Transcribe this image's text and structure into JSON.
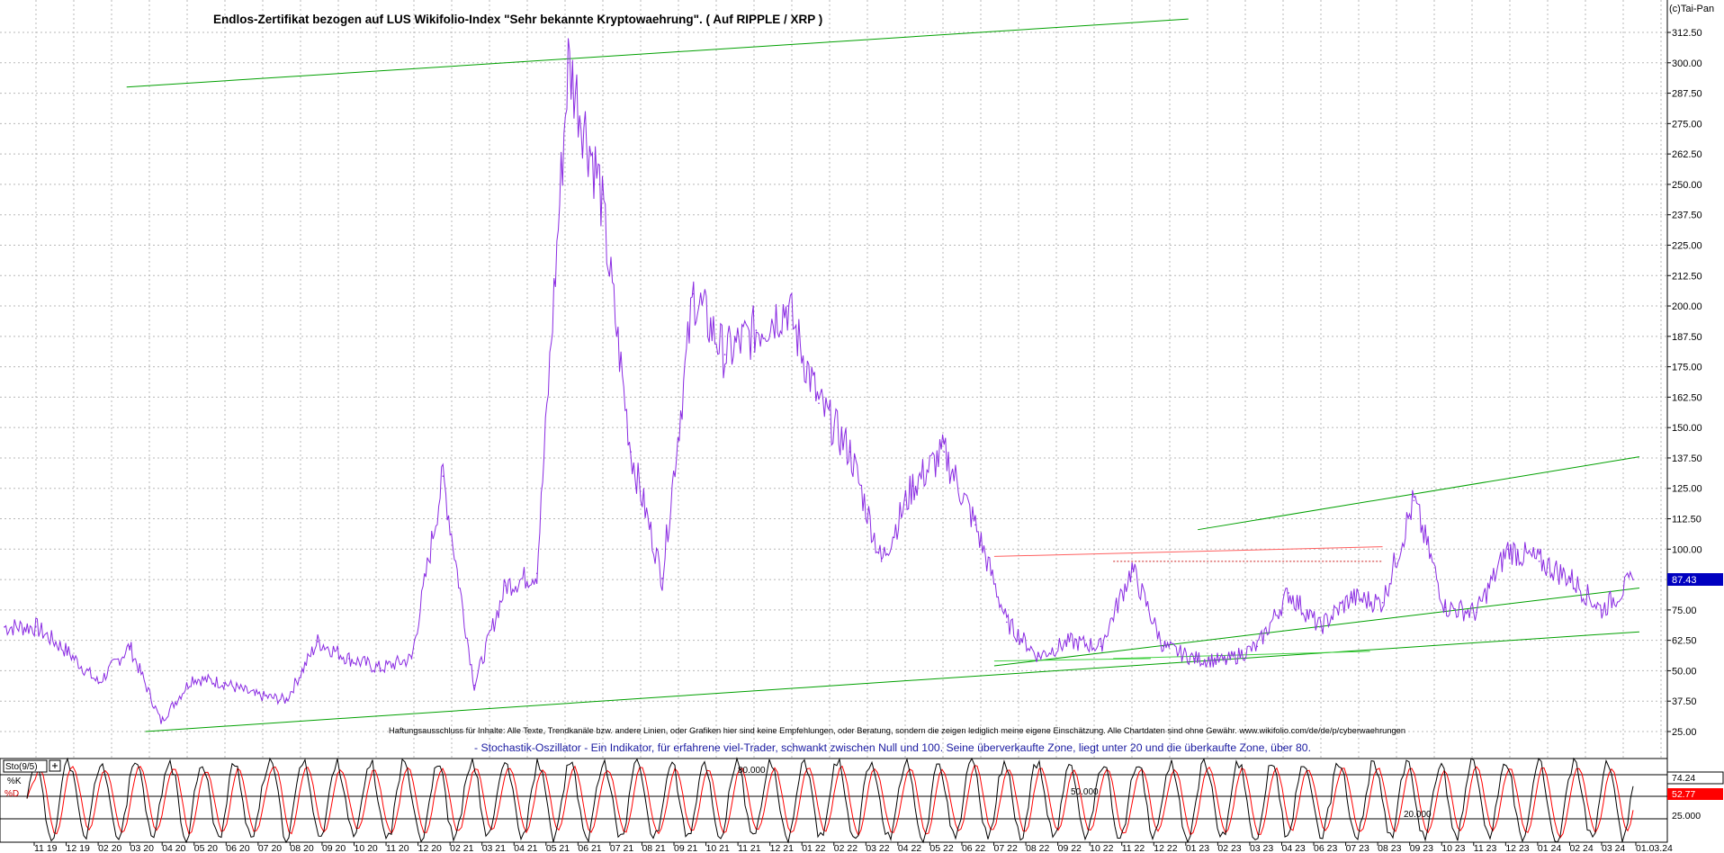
{
  "chart_data": [
    {
      "type": "line",
      "title": "Endlos-Zertifikat bezogen auf LUS Wikifolio-Index \"Sehr bekannte Kryptowaehrung\". ( Auf RIPPLE / XRP )",
      "copyright": "(c)Tai-Pan",
      "ylim": [
        20,
        317
      ],
      "yticks": [
        "312.50",
        "300.00",
        "287.50",
        "275.00",
        "262.50",
        "250.00",
        "237.50",
        "225.00",
        "212.50",
        "200.00",
        "187.50",
        "175.00",
        "162.50",
        "150.00",
        "137.50",
        "125.00",
        "112.50",
        "100.00",
        "87.50",
        "75.00",
        "62.50",
        "50.00",
        "37.50",
        "25.00"
      ],
      "last_value_label": "87.43",
      "last_value": 87.43,
      "series_color": "#8a2be2",
      "series": [
        {
          "x": [
            "11.2019",
            "12.2019",
            "01.2020",
            "02.2020",
            "03.2020",
            "04.2020",
            "05.2020",
            "06.2020",
            "07.2020",
            "08.2020",
            "09.2020",
            "10.2020",
            "11.2020",
            "12.2020",
            "01.2021",
            "02.2021",
            "03.2021",
            "04.2021",
            "05.2021",
            "06.2021",
            "07.2021",
            "08.2021",
            "09.2021",
            "10.2021",
            "11.2021",
            "12.2021",
            "01.2022",
            "02.2022",
            "03.2022",
            "04.2022",
            "05.2022",
            "06.2022",
            "07.2022",
            "08.2022",
            "09.2022",
            "10.2022",
            "11.2022",
            "12.2022",
            "01.2023",
            "02.2023",
            "03.2023",
            "04.2023",
            "05.2023",
            "06.2023",
            "07.2023",
            "08.2023",
            "09.2023",
            "10.2023",
            "11.2023",
            "12.2023",
            "01.2024",
            "02.2024",
            "03.2024"
          ],
          "values": [
            68,
            68,
            58,
            45,
            60,
            29,
            47,
            45,
            40,
            38,
            62,
            55,
            51,
            55,
            130,
            44,
            85,
            90,
            300,
            250,
            140,
            88,
            205,
            180,
            190,
            200,
            160,
            140,
            95,
            126,
            140,
            110,
            70,
            56,
            62,
            60,
            92,
            60,
            55,
            54,
            60,
            82,
            68,
            80,
            78,
            120,
            76,
            74,
            100,
            95,
            88,
            75,
            87.43
          ]
        }
      ],
      "trendlines_color": "#00a000",
      "resistance_color": "#ff6060",
      "disclaimer": "Haftungsausschluss für Inhalte: Alle Texte, Trendkanäle bzw. andere Linien, oder Grafiken hier sind keine Empfehlungen, oder Beratung, sondern die zeigen lediglich meine eigene Einschätzung. Alle Chartdaten sind ohne Gewähr. www.wikifolio.com/de/de/p/cyberwaehrungen",
      "indicator_note": "- Stochastik-Oszillator - Ein Indikator, für erfahrene viel-Trader, schwankt zwischen Null und 100. Seine überverkaufte Zone, liegt unter 20 und die überkaufte Zone, über 80."
    },
    {
      "type": "line",
      "title": "Sto(9/5)",
      "ylim": [
        0,
        100
      ],
      "k_label": "%K",
      "d_label": "%D",
      "k_value_label": "74.24",
      "d_value_label": "52.77",
      "k_color": "#000000",
      "d_color": "#ff0000",
      "yticks": [
        "25.000"
      ],
      "levels": [
        "80.000",
        "50.000",
        "20.000"
      ]
    }
  ],
  "x_axis_labels": [
    "11 19",
    "12 19",
    "02 20",
    "03 20",
    "04 20",
    "05 20",
    "06 20",
    "07 20",
    "08 20",
    "09 20",
    "10 20",
    "11 20",
    "12 20",
    "02 21",
    "03 21",
    "04 21",
    "05 21",
    "06 21",
    "07 21",
    "08 21",
    "09 21",
    "10 21",
    "11 21",
    "12 21",
    "01 22",
    "02 22",
    "03 22",
    "04 22",
    "05 22",
    "06 22",
    "07 22",
    "08 22",
    "09 22",
    "10 22",
    "11 22",
    "12 22",
    "01 23",
    "02 23",
    "03 23",
    "04 23",
    "06 23",
    "07 23",
    "08 23",
    "09 23",
    "10 23",
    "11 23",
    "12 23",
    "01 24",
    "02 24",
    "03 24",
    "01.03.24"
  ]
}
